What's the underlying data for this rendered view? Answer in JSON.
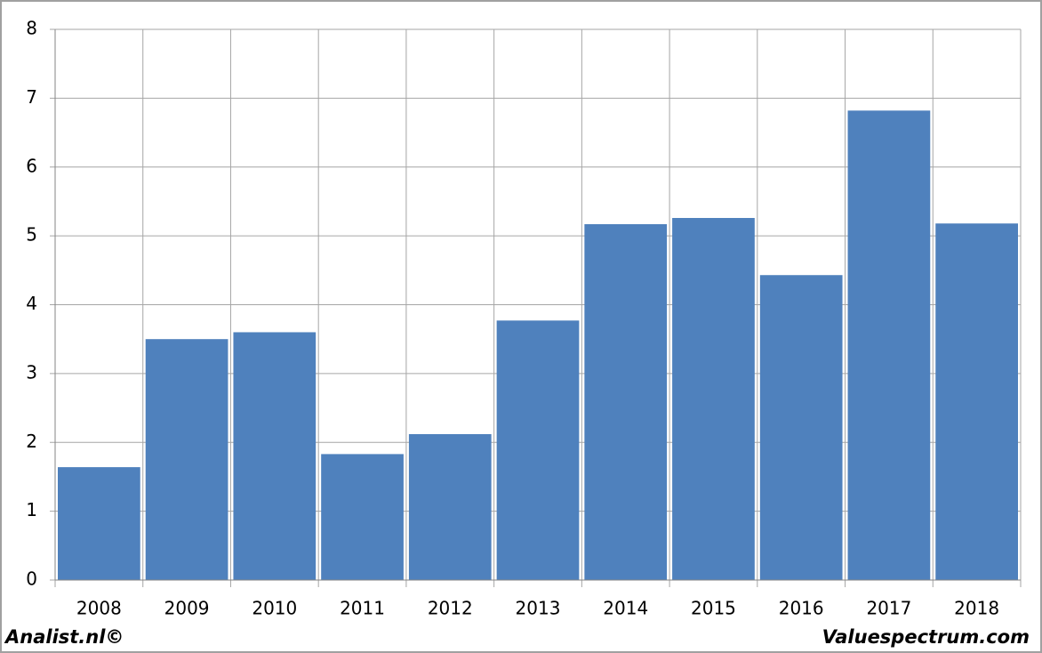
{
  "chart_data": {
    "type": "bar",
    "categories": [
      "2008",
      "2009",
      "2010",
      "2011",
      "2012",
      "2013",
      "2014",
      "2015",
      "2016",
      "2017",
      "2018"
    ],
    "values": [
      1.64,
      3.5,
      3.6,
      1.83,
      2.12,
      3.77,
      5.17,
      5.26,
      4.43,
      6.82,
      5.18
    ],
    "color": "#4f81bd",
    "ylim": [
      0,
      8
    ],
    "yticks": [
      0,
      1,
      2,
      3,
      4,
      5,
      6,
      7,
      8
    ],
    "grid": true,
    "footer_left": "Analist.nl©",
    "footer_right": "Valuespectrum.com"
  }
}
